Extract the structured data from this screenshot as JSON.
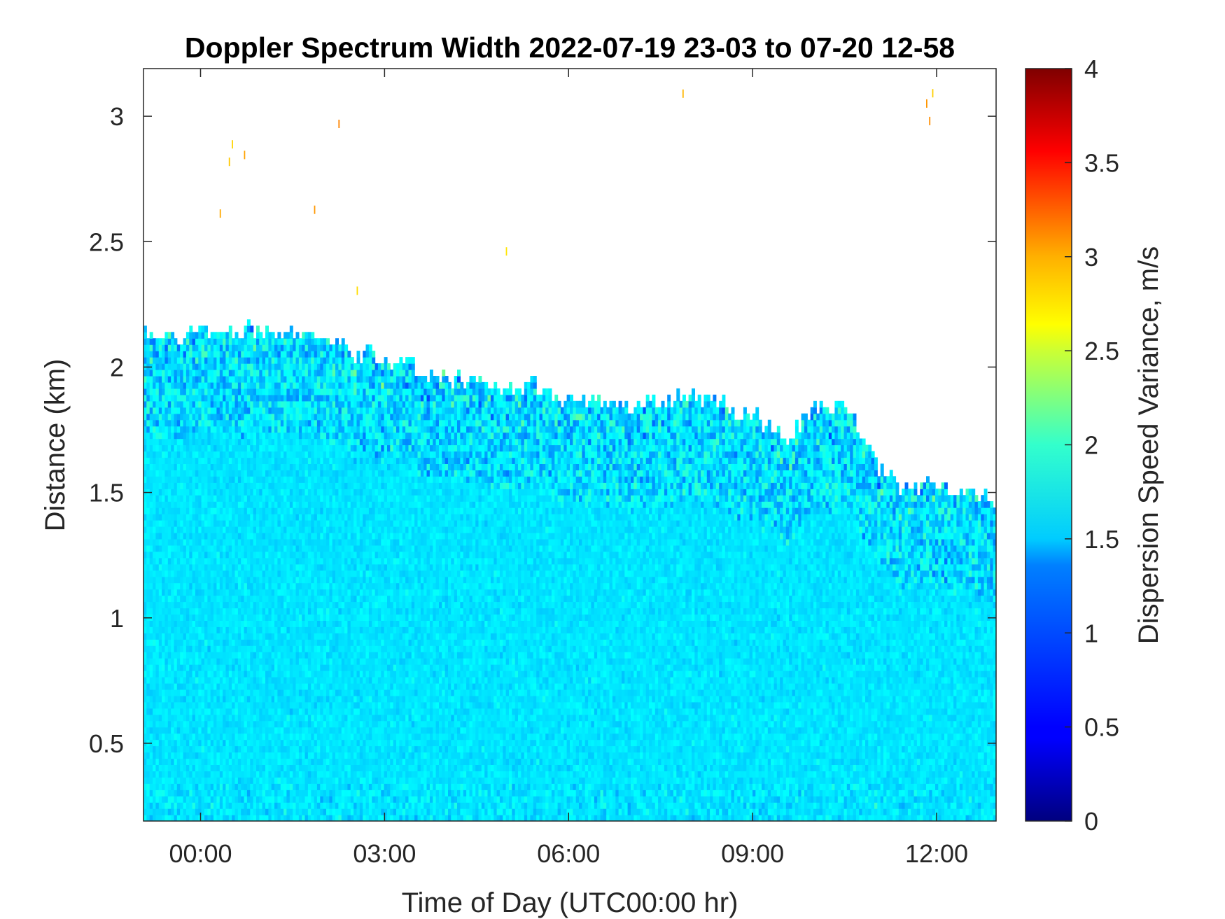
{
  "chart_data": {
    "type": "heatmap",
    "title": "Doppler Spectrum Width 2022-07-19 23-03 to 07-20 12-58",
    "xlabel": "Time of Day (UTC00:00 hr)",
    "ylabel": "Distance (km)",
    "x_tick_labels": [
      "00:00",
      "03:00",
      "06:00",
      "09:00",
      "12:00"
    ],
    "x_tick_values_hr": [
      0,
      3,
      6,
      9,
      12
    ],
    "xlim_hr": [
      -0.93,
      12.97
    ],
    "y_tick_labels": [
      "0.5",
      "1",
      "1.5",
      "2",
      "2.5",
      "3"
    ],
    "y_tick_values_km": [
      0.5,
      1,
      1.5,
      2,
      2.5,
      3
    ],
    "ylim_km": [
      0.19,
      3.19
    ],
    "colorbar": {
      "label": "Dispersion Speed Variance, m/s",
      "colormap": "jet",
      "clim": [
        0,
        4
      ],
      "tick_labels": [
        "0",
        "0.5",
        "1",
        "1.5",
        "2",
        "2.5",
        "3",
        "3.5",
        "4"
      ],
      "tick_values": [
        0,
        0.5,
        1,
        1.5,
        2,
        2.5,
        3,
        3.5,
        4
      ]
    },
    "dominant_value_ms": 1.4,
    "signal_top_km": {
      "time_hr": [
        -0.93,
        0,
        1,
        2,
        3,
        4,
        5,
        6,
        7,
        8,
        9,
        9.5,
        10,
        10.5,
        11,
        11.5,
        12,
        12.5,
        12.97
      ],
      "height_km": [
        2.15,
        2.12,
        2.15,
        2.12,
        2.02,
        1.96,
        1.92,
        1.88,
        1.85,
        1.88,
        1.8,
        1.72,
        1.85,
        1.85,
        1.6,
        1.52,
        1.52,
        1.5,
        1.48
      ]
    }
  }
}
